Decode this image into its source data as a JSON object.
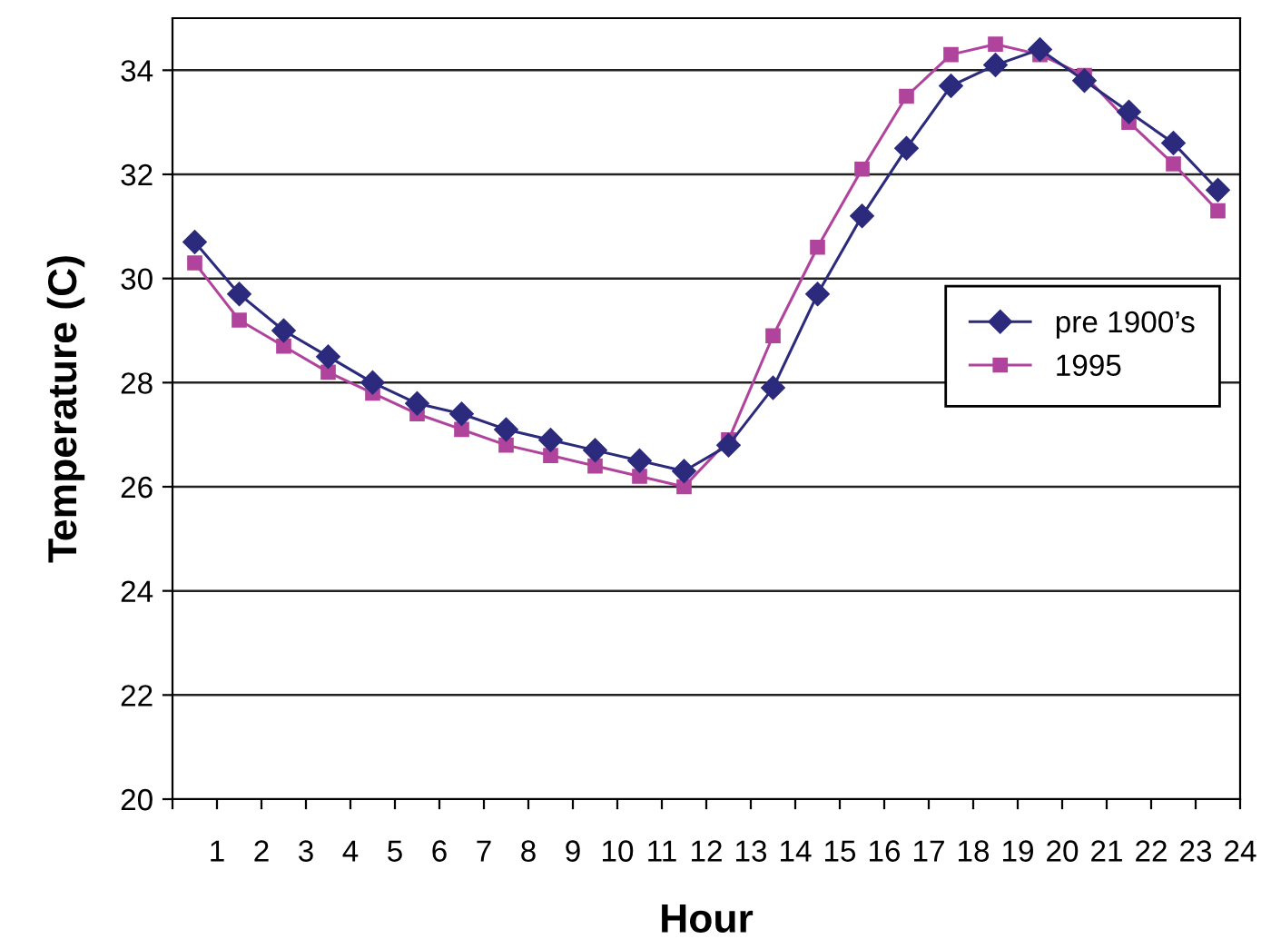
{
  "chart_data": {
    "type": "line",
    "xlabel": "Hour",
    "ylabel": "Temperature (C)",
    "x": [
      0.5,
      1.5,
      2.5,
      3.5,
      4.5,
      5.5,
      6.5,
      7.5,
      8.5,
      9.5,
      10.5,
      11.5,
      12.5,
      13.5,
      14.5,
      15.5,
      16.5,
      17.5,
      18.5,
      19.5,
      20.5,
      21.5,
      22.5,
      23.5
    ],
    "series": [
      {
        "name": "pre 1900’s",
        "color": "#2b2a7c",
        "marker": "diamond",
        "values": [
          30.7,
          29.7,
          29.0,
          28.5,
          28.0,
          27.6,
          27.4,
          27.1,
          26.9,
          26.7,
          26.5,
          26.3,
          26.8,
          27.9,
          29.7,
          31.2,
          32.5,
          33.7,
          34.1,
          34.4,
          33.8,
          33.2,
          32.6,
          31.7
        ]
      },
      {
        "name": "1995",
        "color": "#b0449c",
        "marker": "square",
        "values": [
          30.3,
          29.2,
          28.7,
          28.2,
          27.8,
          27.4,
          27.1,
          26.8,
          26.6,
          26.4,
          26.2,
          26.0,
          26.9,
          28.9,
          30.6,
          32.1,
          33.5,
          34.3,
          34.5,
          34.3,
          33.9,
          33.0,
          32.2,
          31.3
        ]
      }
    ],
    "xlim": [
      0,
      24
    ],
    "xticks": [
      {
        "value": 0,
        "label": null
      },
      1,
      2,
      3,
      4,
      5,
      6,
      7,
      8,
      9,
      10,
      11,
      12,
      13,
      14,
      15,
      16,
      17,
      18,
      19,
      20,
      21,
      22,
      23,
      24
    ],
    "ylim": [
      20,
      35
    ],
    "yticks": [
      20,
      22,
      24,
      26,
      28,
      30,
      32,
      34
    ],
    "grid": "y",
    "legend": "center right",
    "line_style": "solid"
  }
}
